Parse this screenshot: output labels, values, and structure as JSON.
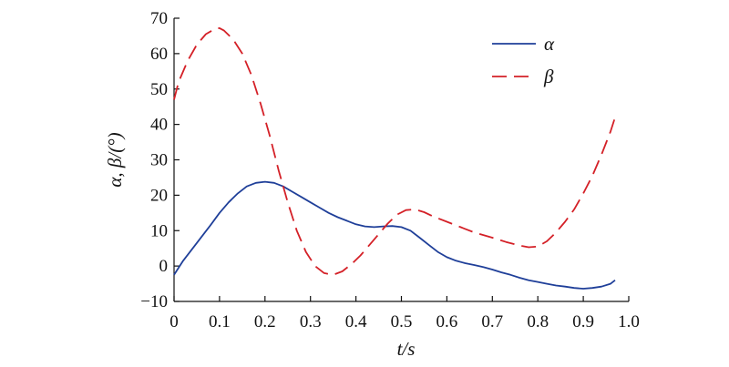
{
  "chart_data": {
    "type": "line",
    "title": "",
    "xlabel": "t/s",
    "ylabel": "α, β/(°)",
    "xlim": [
      0,
      1.0
    ],
    "ylim": [
      -10,
      70
    ],
    "xticks": [
      0,
      0.1,
      0.2,
      0.3,
      0.4,
      0.5,
      0.6,
      0.7,
      0.8,
      0.9,
      1.0
    ],
    "xtick_labels": [
      "0",
      "0.1",
      "0.2",
      "0.3",
      "0.4",
      "0.5",
      "0.6",
      "0.7",
      "0.8",
      "0.9",
      "1.0"
    ],
    "yticks": [
      -10,
      0,
      10,
      20,
      30,
      40,
      50,
      60,
      70
    ],
    "ytick_labels": [
      "−10",
      "0",
      "10",
      "20",
      "30",
      "40",
      "50",
      "60",
      "70"
    ],
    "grid": false,
    "legend_position": "top-right",
    "series": [
      {
        "name": "α",
        "color": "#1f3f99",
        "style": "solid",
        "x": [
          0,
          0.02,
          0.05,
          0.08,
          0.1,
          0.12,
          0.14,
          0.16,
          0.18,
          0.2,
          0.22,
          0.24,
          0.26,
          0.28,
          0.3,
          0.32,
          0.34,
          0.36,
          0.38,
          0.4,
          0.42,
          0.44,
          0.46,
          0.48,
          0.5,
          0.52,
          0.54,
          0.56,
          0.58,
          0.6,
          0.62,
          0.64,
          0.66,
          0.68,
          0.7,
          0.72,
          0.74,
          0.76,
          0.78,
          0.8,
          0.82,
          0.84,
          0.86,
          0.88,
          0.9,
          0.92,
          0.94,
          0.96,
          0.97
        ],
        "y": [
          -2.5,
          1.5,
          6.5,
          11.5,
          15,
          18,
          20.5,
          22.5,
          23.5,
          23.8,
          23.5,
          22.5,
          21,
          19.5,
          18,
          16.5,
          15,
          13.8,
          12.8,
          11.8,
          11.2,
          11,
          11.2,
          11.3,
          11,
          10,
          8,
          6,
          4,
          2.5,
          1.5,
          0.8,
          0.3,
          -0.3,
          -1,
          -1.8,
          -2.5,
          -3.3,
          -4,
          -4.5,
          -5,
          -5.5,
          -5.8,
          -6.2,
          -6.4,
          -6.2,
          -5.8,
          -5,
          -4
        ]
      },
      {
        "name": "β",
        "color": "#d42027",
        "style": "dashed",
        "x": [
          0,
          0.01,
          0.03,
          0.05,
          0.07,
          0.09,
          0.1,
          0.11,
          0.13,
          0.15,
          0.17,
          0.19,
          0.21,
          0.23,
          0.25,
          0.27,
          0.29,
          0.31,
          0.33,
          0.35,
          0.37,
          0.39,
          0.41,
          0.43,
          0.45,
          0.47,
          0.49,
          0.51,
          0.53,
          0.55,
          0.57,
          0.6,
          0.63,
          0.66,
          0.7,
          0.73,
          0.76,
          0.78,
          0.8,
          0.82,
          0.84,
          0.86,
          0.88,
          0.9,
          0.92,
          0.94,
          0.96,
          0.97
        ],
        "y": [
          47,
          52,
          58,
          62.5,
          65.5,
          67,
          67.2,
          66.5,
          64,
          60,
          54,
          46,
          37,
          27,
          18,
          10,
          4,
          0,
          -2,
          -2.5,
          -1.5,
          0.5,
          3,
          6,
          9,
          12,
          14.5,
          15.8,
          16,
          15.2,
          14,
          12.5,
          11,
          9.5,
          8,
          6.8,
          5.8,
          5.3,
          5.5,
          7,
          9.5,
          12.5,
          16,
          20.5,
          25.5,
          31.5,
          38,
          42
        ]
      }
    ]
  }
}
